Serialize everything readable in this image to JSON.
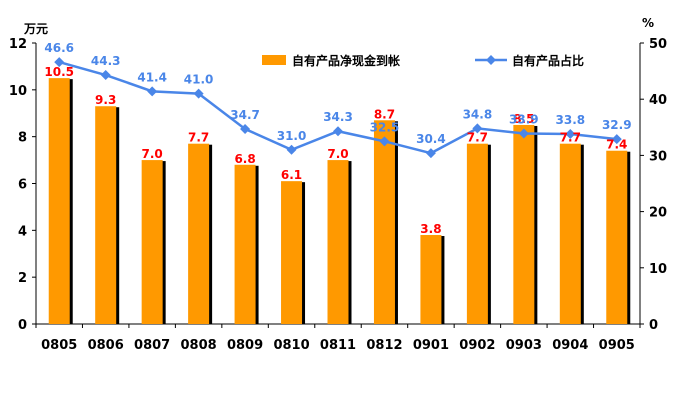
{
  "chart_data": {
    "type": "bar",
    "categories": [
      "0805",
      "0806",
      "0807",
      "0808",
      "0809",
      "0810",
      "0811",
      "0812",
      "0901",
      "0902",
      "0903",
      "0904",
      "0905"
    ],
    "left_unit": "万元",
    "right_unit": "%",
    "ylim": [
      0,
      12
    ],
    "y_ticks": [
      0,
      2,
      4,
      6,
      8,
      10,
      12
    ],
    "y2lim": [
      0,
      50
    ],
    "y2_ticks": [
      0,
      10,
      20,
      30,
      40,
      50
    ],
    "legend_position": "top-right",
    "series": [
      {
        "name": "自有产品净现金到帐",
        "type": "bar",
        "axis": "left",
        "color": "#ff9900",
        "label_color": "#ff0000",
        "values": [
          10.5,
          9.3,
          7.0,
          7.7,
          6.8,
          6.1,
          7.0,
          8.7,
          3.8,
          7.7,
          8.5,
          7.7,
          7.4
        ],
        "labels": [
          "10.5",
          "9.3",
          "7.0",
          "7.7",
          "6.8",
          "6.1",
          "7.0",
          "8.7",
          "3.8",
          "7.7",
          "8.5",
          "7.7",
          "7.4"
        ]
      },
      {
        "name": "自有产品占比",
        "type": "line",
        "axis": "right",
        "color": "#4a86e8",
        "label_color": "#4a86e8",
        "values": [
          46.6,
          44.3,
          41.4,
          41.0,
          34.7,
          31.0,
          34.3,
          32.5,
          30.4,
          34.8,
          33.9,
          33.8,
          32.9
        ],
        "labels": [
          "46.6",
          "44.3",
          "41.4",
          "41.0",
          "34.7",
          "31.0",
          "34.3",
          "32.5",
          "30.4",
          "34.8",
          "33.9",
          "33.8",
          "32.9"
        ]
      }
    ]
  }
}
